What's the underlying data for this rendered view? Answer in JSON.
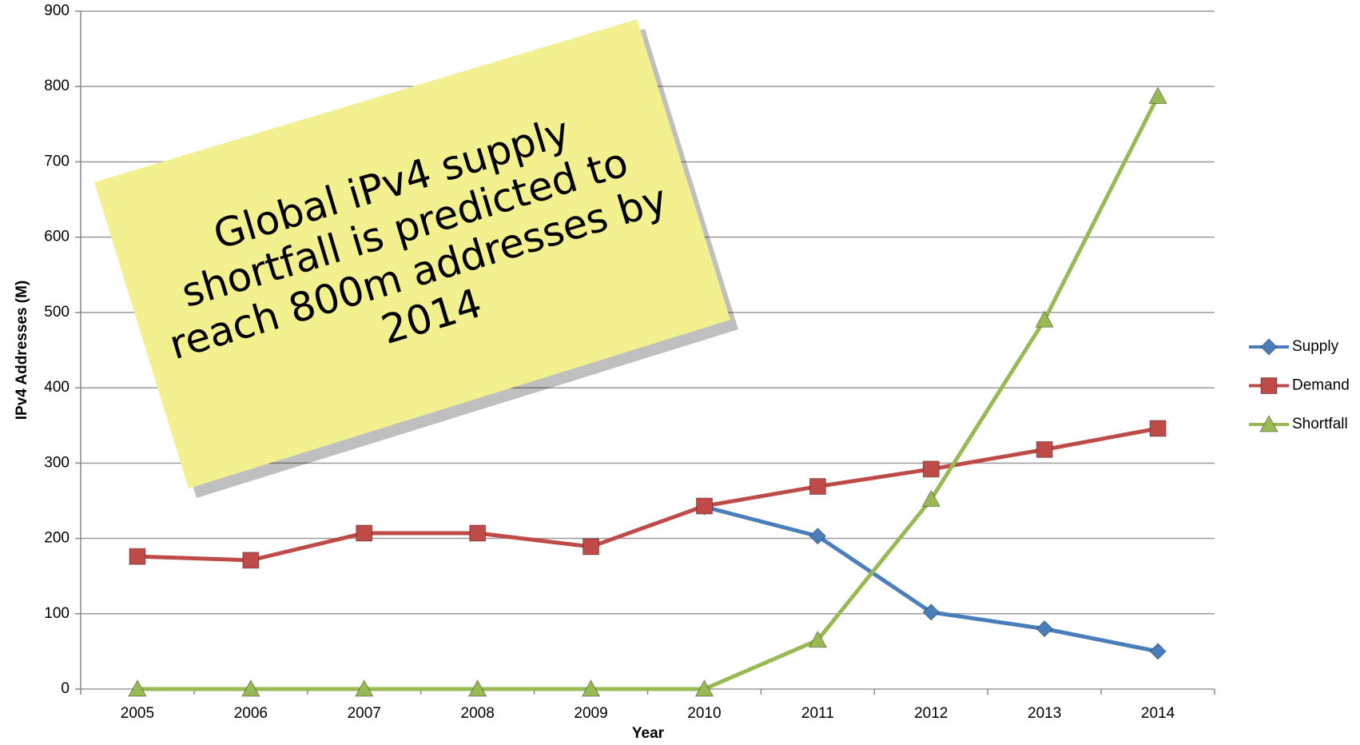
{
  "chart_data": {
    "type": "line",
    "categories": [
      "2005",
      "2006",
      "2007",
      "2008",
      "2009",
      "2010",
      "2011",
      "2012",
      "2013",
      "2014"
    ],
    "series": [
      {
        "name": "Supply",
        "color": "#4a7ebb",
        "values": [
          null,
          null,
          null,
          null,
          null,
          242,
          203,
          102,
          80,
          50
        ]
      },
      {
        "name": "Demand",
        "color": "#be4b48",
        "values": [
          176,
          171,
          207,
          207,
          189,
          243,
          269,
          292,
          318,
          346
        ]
      },
      {
        "name": "Shortfall",
        "color": "#98b954",
        "values": [
          0,
          0,
          0,
          0,
          0,
          0,
          65,
          252,
          490,
          787
        ]
      }
    ],
    "ylim": [
      0,
      900
    ],
    "yticks": [
      0,
      100,
      200,
      300,
      400,
      500,
      600,
      700,
      800,
      900
    ],
    "ylabel": "IPv4 Addresses (M)",
    "xlabel": "Year",
    "grid": true,
    "legend": "right",
    "annotation": [
      "Global iPv4 supply",
      "shortfall is predicted to",
      "reach 800m addresses by",
      "2014"
    ]
  }
}
